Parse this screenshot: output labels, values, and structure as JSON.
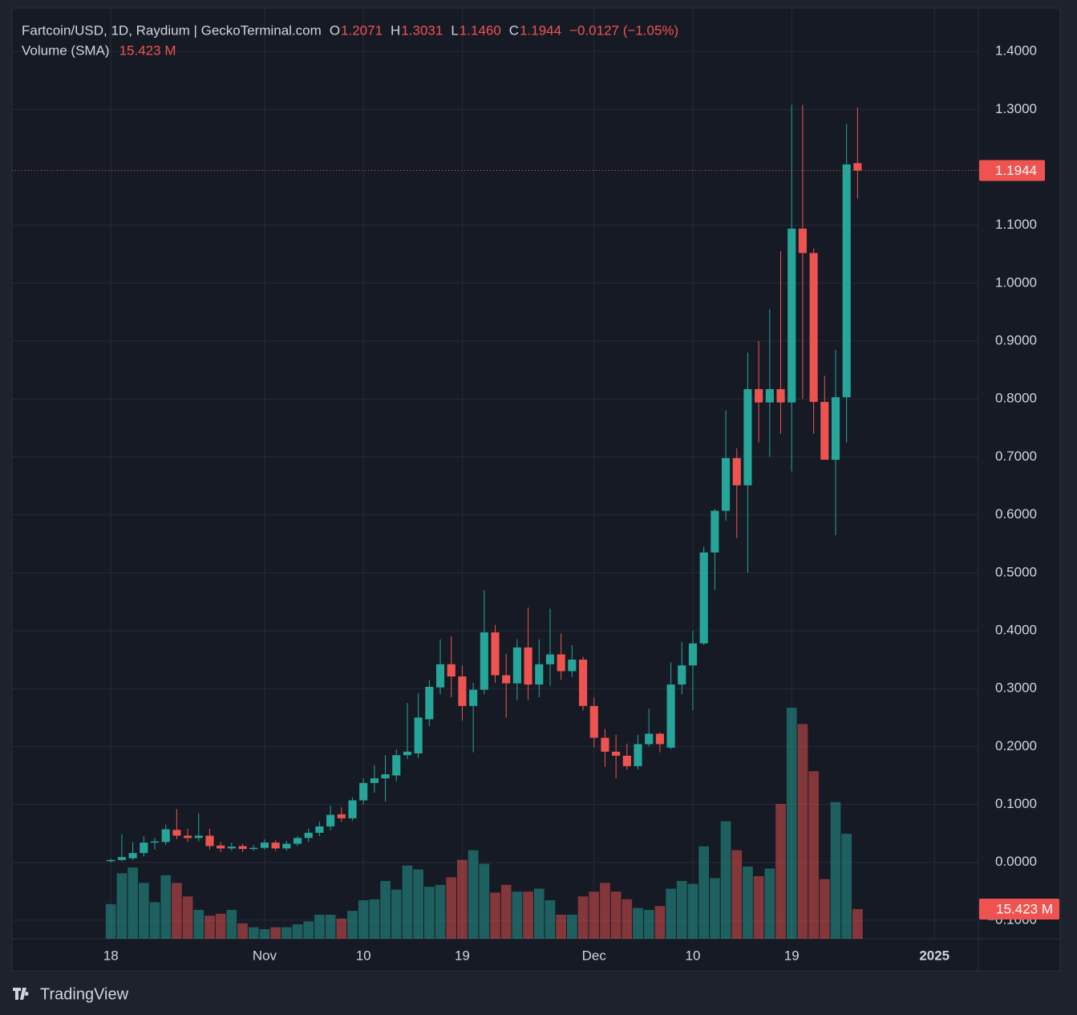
{
  "chart_data": {
    "type": "candlestick",
    "title": "Fartcoin/USD, 1D, Raydium | GeckoTerminal.com",
    "ohlc_legend": [
      {
        "label": "O",
        "value": "1.2071"
      },
      {
        "label": "H",
        "value": "1.3031"
      },
      {
        "label": "L",
        "value": "1.1460"
      },
      {
        "label": "C",
        "value": "1.1944"
      },
      {
        "label": "",
        "value": "−0.0127 (−1.05%)"
      }
    ],
    "volume_name": "Volume (SMA)",
    "volume_legend": "15.423 M",
    "last_price_label": "1.1944",
    "last_volume_label": "15.423 M",
    "up_color": "#26a69a",
    "down_color": "#ef5350",
    "grid": true,
    "x": [
      "2024-10-18",
      "2024-10-19",
      "2024-10-20",
      "2024-10-21",
      "2024-10-22",
      "2024-10-23",
      "2024-10-24",
      "2024-10-25",
      "2024-10-26",
      "2024-10-27",
      "2024-10-28",
      "2024-10-29",
      "2024-10-30",
      "2024-10-31",
      "2024-11-01",
      "2024-11-02",
      "2024-11-03",
      "2024-11-04",
      "2024-11-05",
      "2024-11-06",
      "2024-11-07",
      "2024-11-08",
      "2024-11-09",
      "2024-11-10",
      "2024-11-11",
      "2024-11-12",
      "2024-11-13",
      "2024-11-14",
      "2024-11-15",
      "2024-11-16",
      "2024-11-17",
      "2024-11-18",
      "2024-11-19",
      "2024-11-20",
      "2024-11-21",
      "2024-11-22",
      "2024-11-23",
      "2024-11-24",
      "2024-11-25",
      "2024-11-26",
      "2024-11-27",
      "2024-11-28",
      "2024-11-29",
      "2024-11-30",
      "2024-12-01",
      "2024-12-02",
      "2024-12-03",
      "2024-12-04",
      "2024-12-05",
      "2024-12-06",
      "2024-12-07",
      "2024-12-08",
      "2024-12-09",
      "2024-12-10",
      "2024-12-11",
      "2024-12-12",
      "2024-12-13",
      "2024-12-14",
      "2024-12-15",
      "2024-12-16",
      "2024-12-17",
      "2024-12-18",
      "2024-12-19",
      "2024-12-20",
      "2024-12-21",
      "2024-12-22",
      "2024-12-23",
      "2024-12-24",
      "2024-12-25"
    ],
    "open": [
      0.002,
      0.004,
      0.007,
      0.016,
      0.034,
      0.035,
      0.056,
      0.046,
      0.042,
      0.046,
      0.029,
      0.024,
      0.028,
      0.023,
      0.025,
      0.034,
      0.024,
      0.032,
      0.042,
      0.051,
      0.062,
      0.083,
      0.076,
      0.107,
      0.137,
      0.145,
      0.15,
      0.185,
      0.188,
      0.247,
      0.302,
      0.342,
      0.321,
      0.27,
      0.298,
      0.397,
      0.323,
      0.309,
      0.371,
      0.307,
      0.342,
      0.359,
      0.33,
      0.35,
      0.27,
      0.215,
      0.191,
      0.184,
      0.166,
      0.204,
      0.222,
      0.198,
      0.307,
      0.34,
      0.378,
      0.535,
      0.607,
      0.698,
      0.651,
      0.817,
      0.794,
      0.817,
      0.794,
      1.094,
      1.052,
      0.795,
      0.695,
      0.803,
      1.2071
    ],
    "high": [
      0.006,
      0.048,
      0.035,
      0.045,
      0.042,
      0.065,
      0.092,
      0.058,
      0.085,
      0.058,
      0.035,
      0.034,
      0.032,
      0.03,
      0.04,
      0.038,
      0.037,
      0.045,
      0.058,
      0.07,
      0.098,
      0.095,
      0.112,
      0.145,
      0.168,
      0.185,
      0.195,
      0.275,
      0.292,
      0.315,
      0.385,
      0.39,
      0.34,
      0.31,
      0.47,
      0.41,
      0.36,
      0.385,
      0.44,
      0.385,
      0.438,
      0.395,
      0.375,
      0.355,
      0.285,
      0.23,
      0.22,
      0.205,
      0.22,
      0.265,
      0.225,
      0.345,
      0.38,
      0.4,
      0.545,
      0.61,
      0.78,
      0.715,
      0.88,
      0.9,
      0.955,
      1.055,
      1.308,
      1.308,
      1.06,
      0.84,
      0.885,
      1.275,
      1.3031
    ],
    "low": [
      0,
      0.002,
      0.004,
      0.01,
      0.022,
      0.03,
      0.04,
      0.035,
      0.036,
      0.022,
      0.018,
      0.02,
      0.018,
      0.02,
      0.022,
      0.02,
      0.02,
      0.028,
      0.035,
      0.045,
      0.055,
      0.07,
      0.072,
      0.1,
      0.12,
      0.105,
      0.14,
      0.178,
      0.18,
      0.235,
      0.29,
      0.285,
      0.245,
      0.19,
      0.29,
      0.31,
      0.25,
      0.28,
      0.28,
      0.285,
      0.305,
      0.315,
      0.32,
      0.262,
      0.198,
      0.165,
      0.145,
      0.16,
      0.16,
      0.2,
      0.19,
      0.195,
      0.29,
      0.262,
      0.375,
      0.47,
      0.59,
      0.56,
      0.5,
      0.725,
      0.7,
      0.74,
      0.675,
      0.8,
      0.74,
      0.695,
      0.565,
      0.725,
      1.146
    ],
    "close": [
      0.004,
      0.009,
      0.016,
      0.034,
      0.036,
      0.057,
      0.046,
      0.042,
      0.046,
      0.028,
      0.024,
      0.027,
      0.023,
      0.025,
      0.034,
      0.024,
      0.032,
      0.042,
      0.051,
      0.062,
      0.082,
      0.076,
      0.107,
      0.137,
      0.145,
      0.152,
      0.185,
      0.191,
      0.25,
      0.303,
      0.342,
      0.321,
      0.27,
      0.298,
      0.397,
      0.323,
      0.309,
      0.371,
      0.307,
      0.342,
      0.359,
      0.33,
      0.35,
      0.27,
      0.215,
      0.191,
      0.184,
      0.166,
      0.204,
      0.222,
      0.204,
      0.307,
      0.34,
      0.378,
      0.535,
      0.607,
      0.698,
      0.651,
      0.817,
      0.794,
      0.817,
      0.794,
      1.094,
      1.052,
      0.795,
      0.695,
      0.803,
      1.205,
      1.1944
    ],
    "volume": [
      18,
      34,
      37,
      29,
      19,
      33,
      29,
      22,
      15,
      12,
      13,
      15,
      8,
      6,
      5,
      6,
      6,
      7.5,
      9,
      12.5,
      12.5,
      10.5,
      14.5,
      20,
      20.5,
      30,
      25.5,
      38,
      36,
      27,
      28,
      32,
      41,
      46,
      39,
      24,
      28,
      24.5,
      24.5,
      26,
      20,
      12.5,
      12.5,
      22,
      24.5,
      29,
      24.5,
      20.5,
      16,
      15,
      17,
      26,
      30,
      28.5,
      48,
      31.5,
      61,
      46,
      37.5,
      32.5,
      36.5,
      70,
      120,
      111.5,
      87,
      31,
      71,
      54.5,
      15.423
    ],
    "xlim": [
      "2024-10-09",
      "2025-01-05"
    ],
    "xticks": [
      {
        "value": "2024-10-18",
        "label": "18"
      },
      {
        "value": "2024-11-01",
        "label": "Nov"
      },
      {
        "value": "2024-11-10",
        "label": "10"
      },
      {
        "value": "2024-11-19",
        "label": "19"
      },
      {
        "value": "2024-12-01",
        "label": "Dec"
      },
      {
        "value": "2024-12-10",
        "label": "10"
      },
      {
        "value": "2024-12-19",
        "label": "19"
      },
      {
        "value": "2025-01-01",
        "label": "2025"
      }
    ],
    "ylim": [
      -0.132,
      1.475
    ],
    "yticks": [
      {
        "value": -0.1,
        "label": "−0.1000"
      },
      {
        "value": 0,
        "label": "0.0000"
      },
      {
        "value": 0.1,
        "label": "0.1000"
      },
      {
        "value": 0.2,
        "label": "0.2000"
      },
      {
        "value": 0.3,
        "label": "0.3000"
      },
      {
        "value": 0.4,
        "label": "0.4000"
      },
      {
        "value": 0.5,
        "label": "0.5000"
      },
      {
        "value": 0.6,
        "label": "0.6000"
      },
      {
        "value": 0.7,
        "label": "0.7000"
      },
      {
        "value": 0.8,
        "label": "0.8000"
      },
      {
        "value": 0.9,
        "label": "0.9000"
      },
      {
        "value": 1.0,
        "label": "1.0000"
      },
      {
        "value": 1.1,
        "label": "1.1000"
      },
      {
        "value": 1.3,
        "label": "1.3000"
      },
      {
        "value": 1.4,
        "label": "1.4000"
      }
    ],
    "watermark": "TradingView"
  }
}
